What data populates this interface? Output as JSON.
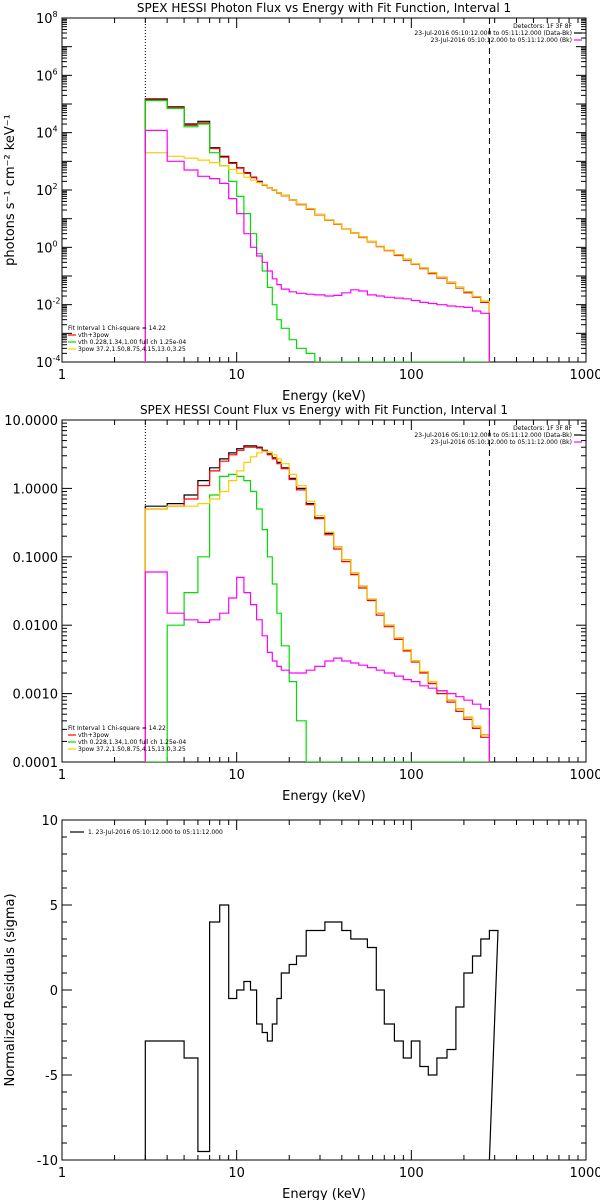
{
  "chart_data": [
    {
      "type": "line",
      "title": "SPEX HESSI Photon Flux vs Energy with Fit Function, Interval 1",
      "xlabel": "Energy (keV)",
      "ylabel": "photons s⁻¹ cm⁻² keV⁻¹",
      "xscale": "log",
      "yscale": "log",
      "xlim": [
        1,
        1000
      ],
      "ylim": [
        0.0001,
        100000000
      ],
      "x_ticks": [
        1,
        10,
        100,
        1000
      ],
      "x_tick_labels": [
        "1",
        "10",
        "100",
        "1000"
      ],
      "y_ticks": [
        0.0001,
        0.01,
        1,
        100,
        10000,
        1000000,
        100000000
      ],
      "y_tick_labels": [
        [
          "10",
          "-4"
        ],
        [
          "10",
          "-2"
        ],
        [
          "10",
          "0"
        ],
        [
          "10",
          "2"
        ],
        [
          "10",
          "4"
        ],
        [
          "10",
          "6"
        ],
        [
          "10",
          "8"
        ]
      ],
      "vlines": [
        {
          "x": 3,
          "style": "dotted"
        },
        {
          "x": 280,
          "style": "dashed"
        }
      ],
      "legend_top_right": [
        {
          "text": "Detectors: 1F 3F 8F",
          "color": "#000000"
        },
        {
          "text": "23-Jul-2016 05:10:12.000 to 05:11:12.000 (Data-Bk)",
          "color": "#000000"
        },
        {
          "text": "23-Jul-2016 05:10:12.000 to 05:11:12.000 (Bk)",
          "color": "#ff00ff"
        }
      ],
      "legend_bottom_left": [
        {
          "text": "Fit Interval 1   Chi-square = 14.22",
          "color": "#000000"
        },
        {
          "text": "vth+3pow",
          "color": "#ff0000"
        },
        {
          "text": "vth 0.228,1.34,1.00  full ch 1.25e-04",
          "color": "#00dd00"
        },
        {
          "text": "3pow 37.2,1.50,8.75,4.15,13.0,3.25",
          "color": "#ffcc00"
        }
      ],
      "series": [
        {
          "color": "#000000",
          "x": [
            3,
            4,
            5,
            6,
            7,
            8,
            9,
            10,
            11,
            12,
            13,
            14,
            15,
            16,
            17,
            18,
            20,
            22,
            25,
            28,
            32,
            36,
            40,
            45,
            50,
            56,
            63,
            70,
            80,
            90,
            100,
            112,
            125,
            140,
            160,
            180,
            200,
            224,
            250,
            280
          ],
          "y": [
            150000,
            80000,
            20000,
            25000,
            3000,
            1500,
            900,
            600,
            400,
            280,
            200,
            150,
            120,
            100,
            80,
            65,
            45,
            32,
            22,
            14,
            9,
            6.5,
            4.5,
            3.2,
            2.3,
            1.6,
            1.1,
            0.8,
            0.55,
            0.38,
            0.27,
            0.19,
            0.13,
            0.09,
            0.06,
            0.04,
            0.028,
            0.019,
            0.013,
            0.008
          ]
        },
        {
          "color": "#ff0000",
          "x": [
            3,
            4,
            5,
            6,
            7,
            8,
            9,
            10,
            11,
            12,
            13,
            14,
            15,
            16,
            17,
            18,
            20,
            22,
            25,
            28,
            32,
            36,
            40,
            45,
            50,
            56,
            63,
            70,
            80,
            90,
            100,
            112,
            125,
            140,
            160,
            180,
            200,
            224,
            250,
            280
          ],
          "y": [
            140000,
            75000,
            18000,
            22000,
            2800,
            1400,
            850,
            580,
            380,
            270,
            190,
            145,
            118,
            98,
            78,
            63,
            44,
            31,
            21,
            13.5,
            8.8,
            6.3,
            4.4,
            3.1,
            2.2,
            1.55,
            1.05,
            0.77,
            0.52,
            0.36,
            0.26,
            0.18,
            0.12,
            0.085,
            0.057,
            0.038,
            0.026,
            0.018,
            0.012,
            0.0075
          ]
        },
        {
          "color": "#00dd00",
          "x": [
            3,
            4,
            5,
            6,
            7,
            8,
            9,
            10,
            11,
            12,
            13,
            14,
            15,
            16,
            17,
            18,
            20,
            22,
            25,
            28
          ],
          "y": [
            130000,
            70000,
            16000,
            20000,
            2000,
            700,
            200,
            60,
            15,
            3,
            0.6,
            0.15,
            0.04,
            0.01,
            0.003,
            0.0015,
            0.0006,
            0.0003,
            0.0002,
            0.0001
          ]
        },
        {
          "color": "#ffcc00",
          "x": [
            3,
            4,
            5,
            6,
            7,
            8,
            9,
            10,
            11,
            12,
            13,
            14,
            15,
            16,
            17,
            18,
            20,
            22,
            25,
            28,
            32,
            36,
            40,
            45,
            50,
            56,
            63,
            70,
            80,
            90,
            100,
            112,
            125,
            140,
            160,
            180,
            200,
            224,
            250,
            280
          ],
          "y": [
            2000,
            1500,
            1300,
            1100,
            900,
            700,
            520,
            380,
            280,
            220,
            180,
            150,
            120,
            100,
            80,
            65,
            45,
            32,
            22,
            14,
            9,
            6.5,
            4.5,
            3.2,
            2.3,
            1.6,
            1.1,
            0.8,
            0.55,
            0.38,
            0.27,
            0.19,
            0.13,
            0.09,
            0.06,
            0.04,
            0.028,
            0.019,
            0.013,
            0.0035
          ]
        },
        {
          "color": "#ff00ff",
          "x": [
            3,
            4,
            5,
            6,
            7,
            8,
            9,
            10,
            11,
            12,
            13,
            14,
            15,
            16,
            17,
            18,
            20,
            22,
            25,
            28,
            32,
            36,
            40,
            45,
            50,
            56,
            63,
            70,
            80,
            90,
            100,
            112,
            125,
            140,
            160,
            180,
            200,
            224,
            250,
            280
          ],
          "y": [
            12000,
            1000,
            500,
            300,
            250,
            170,
            50,
            15,
            3,
            1,
            0.5,
            0.3,
            0.15,
            0.08,
            0.05,
            0.035,
            0.028,
            0.025,
            0.023,
            0.022,
            0.02,
            0.021,
            0.026,
            0.033,
            0.03,
            0.022,
            0.02,
            0.018,
            0.017,
            0.016,
            0.014,
            0.012,
            0.011,
            0.01,
            0.009,
            0.0085,
            0.008,
            0.006,
            0.005,
            0.004
          ]
        }
      ]
    },
    {
      "type": "line",
      "title": "SPEX HESSI Count Flux vs Energy with Fit Function, Interval 1",
      "xlabel": "Energy (keV)",
      "ylabel": "",
      "xscale": "log",
      "yscale": "log",
      "xlim": [
        1,
        1000
      ],
      "ylim": [
        0.0001,
        10
      ],
      "x_ticks": [
        1,
        10,
        100,
        1000
      ],
      "x_tick_labels": [
        "1",
        "10",
        "100",
        "1000"
      ],
      "y_ticks": [
        0.0001,
        0.001,
        0.01,
        0.1,
        1,
        10
      ],
      "y_tick_labels": [
        "0.0001",
        "0.0010",
        "0.0100",
        "0.1000",
        "1.0000",
        "10.0000"
      ],
      "vlines": [
        {
          "x": 3,
          "style": "dotted"
        },
        {
          "x": 280,
          "style": "dashed"
        }
      ],
      "legend_top_right": [
        {
          "text": "Detectors: 1F 3F 8F",
          "color": "#000000"
        },
        {
          "text": "23-Jul-2016 05:10:12.000 to 05:11:12.000 (Data-Bk)",
          "color": "#000000"
        },
        {
          "text": "23-Jul-2016 05:10:12.000 to 05:11:12.000 (Bk)",
          "color": "#ff00ff"
        }
      ],
      "legend_bottom_left": [
        {
          "text": "Fit Interval 1   Chi-square = 14.22",
          "color": "#000000"
        },
        {
          "text": "vth+3pow",
          "color": "#ff0000"
        },
        {
          "text": "vth 0.228,1.34,1.00  full ch 1.25e-04",
          "color": "#00dd00"
        },
        {
          "text": "3pow 37.2,1.50,8.75,4.15,13.0,3.25",
          "color": "#ffcc00"
        }
      ],
      "series": [
        {
          "color": "#000000",
          "x": [
            3,
            4,
            5,
            6,
            7,
            8,
            9,
            10,
            11,
            12,
            13,
            14,
            15,
            16,
            17,
            18,
            20,
            22,
            25,
            28,
            32,
            36,
            40,
            45,
            50,
            56,
            63,
            70,
            80,
            90,
            100,
            112,
            125,
            140,
            160,
            180,
            200,
            224,
            250,
            280
          ],
          "y": [
            0.55,
            0.6,
            0.8,
            1.3,
            2.0,
            2.7,
            3.3,
            3.8,
            4.2,
            4.2,
            4.0,
            3.6,
            3.2,
            2.8,
            2.4,
            2.0,
            1.4,
            1.0,
            0.6,
            0.37,
            0.22,
            0.14,
            0.09,
            0.058,
            0.037,
            0.024,
            0.015,
            0.01,
            0.0065,
            0.0044,
            0.003,
            0.0021,
            0.0015,
            0.0011,
            0.0008,
            0.0006,
            0.00045,
            0.00033,
            0.00025,
            0.00018
          ]
        },
        {
          "color": "#ff0000",
          "x": [
            3,
            4,
            5,
            6,
            7,
            8,
            9,
            10,
            11,
            12,
            13,
            14,
            15,
            16,
            17,
            18,
            20,
            22,
            25,
            28,
            32,
            36,
            40,
            45,
            50,
            56,
            63,
            70,
            80,
            90,
            100,
            112,
            125,
            140,
            160,
            180,
            200,
            224,
            250,
            280
          ],
          "y": [
            0.5,
            0.55,
            0.7,
            1.1,
            1.8,
            2.5,
            3.1,
            3.6,
            4.0,
            4.0,
            3.9,
            3.5,
            3.1,
            2.7,
            2.3,
            1.95,
            1.35,
            0.95,
            0.58,
            0.36,
            0.21,
            0.13,
            0.085,
            0.055,
            0.035,
            0.023,
            0.014,
            0.0095,
            0.0062,
            0.0042,
            0.0029,
            0.002,
            0.0014,
            0.001,
            0.00075,
            0.00055,
            0.00042,
            0.00031,
            0.00023,
            0.00017
          ]
        },
        {
          "color": "#00dd00",
          "x": [
            3,
            4,
            5,
            6,
            7,
            8,
            9,
            10,
            11,
            12,
            13,
            14,
            15,
            16,
            17,
            18,
            20,
            22,
            25
          ],
          "y": [
            0.0,
            0.01,
            0.03,
            0.1,
            0.8,
            1.5,
            1.6,
            1.5,
            1.3,
            0.9,
            0.5,
            0.25,
            0.1,
            0.04,
            0.015,
            0.005,
            0.0015,
            0.0004,
            0.0001
          ]
        },
        {
          "color": "#ffcc00",
          "x": [
            3,
            4,
            5,
            6,
            7,
            8,
            9,
            10,
            11,
            12,
            13,
            14,
            15,
            16,
            17,
            18,
            20,
            22,
            25,
            28,
            32,
            36,
            40,
            45,
            50,
            56,
            63,
            70,
            80,
            90,
            100,
            112,
            125,
            140,
            160,
            180,
            200,
            224,
            250,
            280
          ],
          "y": [
            0.5,
            0.55,
            0.55,
            0.6,
            0.7,
            0.9,
            1.3,
            1.8,
            2.4,
            2.9,
            3.3,
            3.5,
            3.4,
            3.1,
            2.7,
            2.3,
            1.6,
            1.1,
            0.65,
            0.4,
            0.23,
            0.14,
            0.09,
            0.058,
            0.037,
            0.024,
            0.015,
            0.01,
            0.0065,
            0.0044,
            0.003,
            0.0021,
            0.0015,
            0.0011,
            0.0008,
            0.0006,
            0.00045,
            0.00033,
            0.00025,
            0.00018
          ]
        },
        {
          "color": "#ff00ff",
          "x": [
            3,
            4,
            5,
            6,
            7,
            8,
            9,
            10,
            11,
            12,
            13,
            14,
            15,
            16,
            17,
            18,
            20,
            22,
            25,
            28,
            32,
            36,
            40,
            45,
            50,
            56,
            63,
            70,
            80,
            90,
            100,
            112,
            125,
            140,
            160,
            180,
            200,
            224,
            250,
            280
          ],
          "y": [
            0.06,
            0.015,
            0.012,
            0.011,
            0.012,
            0.015,
            0.025,
            0.05,
            0.03,
            0.02,
            0.012,
            0.007,
            0.004,
            0.003,
            0.0025,
            0.0022,
            0.002,
            0.002,
            0.0022,
            0.0025,
            0.003,
            0.0033,
            0.003,
            0.0028,
            0.0026,
            0.0024,
            0.0022,
            0.002,
            0.0018,
            0.0016,
            0.0015,
            0.0013,
            0.0012,
            0.0011,
            0.001,
            0.0009,
            0.0008,
            0.0007,
            0.0006,
            0.0005
          ]
        }
      ]
    },
    {
      "type": "line",
      "title": "",
      "xlabel": "Energy (keV)",
      "ylabel": "Normalized Residuals (sigma)",
      "xscale": "log",
      "yscale": "linear",
      "xlim": [
        1,
        1000
      ],
      "ylim": [
        -10,
        10
      ],
      "x_ticks": [
        1,
        10,
        100,
        1000
      ],
      "x_tick_labels": [
        "1",
        "10",
        "100",
        "1000"
      ],
      "y_ticks": [
        -10,
        -5,
        0,
        5,
        10
      ],
      "y_tick_labels": [
        "-10",
        "-5",
        "0",
        "5",
        "10"
      ],
      "legend_top_left": [
        {
          "text": "1. 23-Jul-2016 05:10:12.000 to 05:11:12.000",
          "color": "#000000"
        }
      ],
      "series": [
        {
          "color": "#000000",
          "x": [
            3,
            4,
            5,
            6,
            7,
            8,
            9,
            10,
            11,
            12,
            13,
            14,
            15,
            16,
            17,
            18,
            20,
            22,
            25,
            28,
            32,
            36,
            40,
            45,
            50,
            56,
            63,
            70,
            80,
            90,
            100,
            112,
            125,
            140,
            160,
            180,
            200,
            224,
            250,
            280
          ],
          "y": [
            -3,
            -3,
            -4,
            -9.5,
            4,
            5,
            -0.5,
            0,
            0.5,
            0,
            -2,
            -2.5,
            -3,
            -2,
            -0.5,
            1,
            1.5,
            2,
            3.5,
            3.5,
            4,
            4,
            3.5,
            3,
            3,
            2.5,
            0,
            -2,
            -3,
            -4,
            -3,
            -4.5,
            -5,
            -4,
            -3.5,
            -1,
            1,
            2,
            3,
            3.5
          ]
        }
      ]
    }
  ]
}
